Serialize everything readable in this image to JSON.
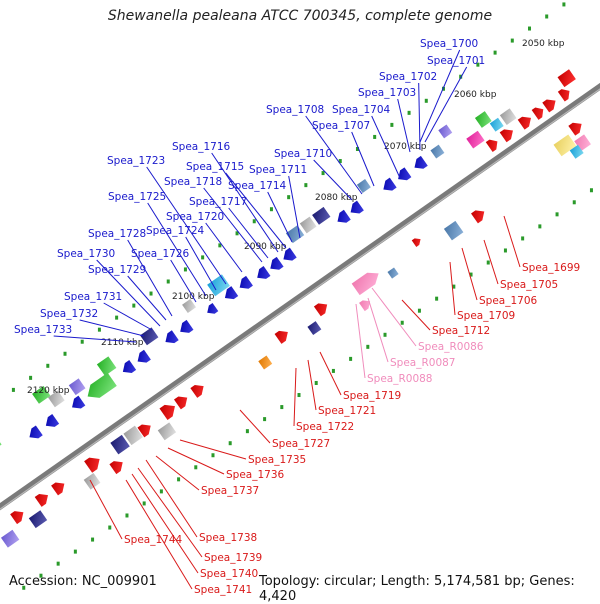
{
  "title": "Shewanella pealeana ATCC 700345, complete genome",
  "footer": {
    "accession": "Accession: NC_009901",
    "summary": "Topology: circular; Length: 5,174,581 bp; Genes: 4,420"
  },
  "colors": {
    "forward_label": "#1a1acc",
    "reverse_label": "#d91a1a",
    "rna_label": "#f08cbc",
    "backbone": "#7a7a7a",
    "tick": "#2a9a2a"
  },
  "scale_labels": [
    "2050 kbp",
    "2060 kbp",
    "2070 kbp",
    "2080 kbp",
    "2090 kbp",
    "2100 kbp",
    "2110 kbp",
    "2120 kbp"
  ],
  "forward_labels": [
    "Spea_1700",
    "Spea_1701",
    "Spea_1702",
    "Spea_1703",
    "Spea_1704",
    "Spea_1707",
    "Spea_1708",
    "Spea_1710",
    "Spea_1711",
    "Spea_1714",
    "Spea_1715",
    "Spea_1716",
    "Spea_1717",
    "Spea_1718",
    "Spea_1720",
    "Spea_1723",
    "Spea_1724",
    "Spea_1725",
    "Spea_1726",
    "Spea_1728",
    "Spea_1729",
    "Spea_1730",
    "Spea_1731",
    "Spea_1732",
    "Spea_1733"
  ],
  "reverse_labels": [
    "Spea_1699",
    "Spea_1705",
    "Spea_1706",
    "Spea_1709",
    "Spea_1712",
    "Spea_1719",
    "Spea_1721",
    "Spea_1722",
    "Spea_1727",
    "Spea_1735",
    "Spea_1736",
    "Spea_1737",
    "Spea_1738",
    "Spea_1739",
    "Spea_1740",
    "Spea_1741",
    "Spea_1744"
  ],
  "rna_labels": [
    "Spea_R0086",
    "Spea_R0087",
    "Spea_R0088"
  ]
}
